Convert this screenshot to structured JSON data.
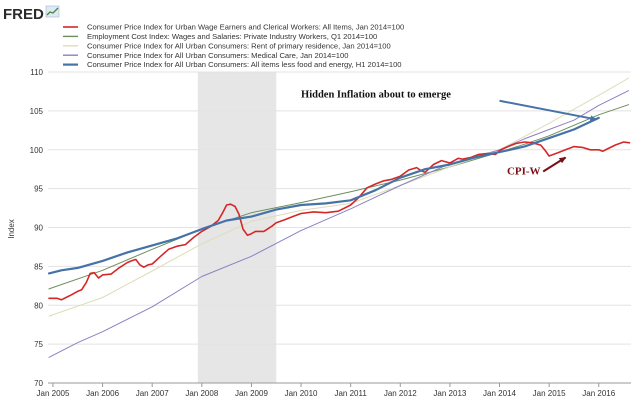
{
  "header": {
    "logo_text": "FRED",
    "logo_icon": "chart-line-icon"
  },
  "chart_data": {
    "type": "line",
    "title": "",
    "xlabel": "",
    "ylabel": "Index",
    "ylim": [
      70,
      110
    ],
    "xlim": [
      2004.9,
      2016.65
    ],
    "grid": true,
    "y_ticks": [
      70,
      75,
      80,
      85,
      90,
      95,
      100,
      105,
      110
    ],
    "x_ticks": [
      {
        "label": "Jan 2005",
        "x": 2005.0
      },
      {
        "label": "Jan 2006",
        "x": 2006.0
      },
      {
        "label": "Jan 2007",
        "x": 2007.0
      },
      {
        "label": "Jan 2008",
        "x": 2008.0
      },
      {
        "label": "Jan 2009",
        "x": 2009.0
      },
      {
        "label": "Jan 2010",
        "x": 2010.0
      },
      {
        "label": "Jan 2011",
        "x": 2011.0
      },
      {
        "label": "Jan 2012",
        "x": 2012.0
      },
      {
        "label": "Jan 2013",
        "x": 2013.0
      },
      {
        "label": "Jan 2014",
        "x": 2014.0
      },
      {
        "label": "Jan 2015",
        "x": 2015.0
      },
      {
        "label": "Jan 2016",
        "x": 2016.0
      }
    ],
    "recession_shading": {
      "start": 2007.92,
      "end": 2009.5,
      "color": "#e6e6e6"
    },
    "series": [
      {
        "name": "Consumer Price Index for Urban Wage Earners and Clerical Workers: All Items, Jan 2014=100",
        "color": "#d62728",
        "width": 1.6,
        "points": [
          [
            2004.92,
            80.9
          ],
          [
            2005.08,
            80.9
          ],
          [
            2005.17,
            80.7
          ],
          [
            2005.33,
            81.2
          ],
          [
            2005.5,
            81.8
          ],
          [
            2005.58,
            82.0
          ],
          [
            2005.67,
            82.9
          ],
          [
            2005.75,
            84.1
          ],
          [
            2005.83,
            84.2
          ],
          [
            2005.92,
            83.5
          ],
          [
            2006.0,
            83.9
          ],
          [
            2006.17,
            84.0
          ],
          [
            2006.33,
            84.8
          ],
          [
            2006.5,
            85.5
          ],
          [
            2006.58,
            85.7
          ],
          [
            2006.67,
            85.9
          ],
          [
            2006.75,
            85.2
          ],
          [
            2006.83,
            84.9
          ],
          [
            2006.92,
            85.2
          ],
          [
            2007.0,
            85.3
          ],
          [
            2007.17,
            86.3
          ],
          [
            2007.33,
            87.2
          ],
          [
            2007.5,
            87.6
          ],
          [
            2007.67,
            87.8
          ],
          [
            2007.83,
            88.7
          ],
          [
            2008.0,
            89.5
          ],
          [
            2008.17,
            90.1
          ],
          [
            2008.33,
            90.9
          ],
          [
            2008.42,
            91.9
          ],
          [
            2008.5,
            92.9
          ],
          [
            2008.58,
            93.0
          ],
          [
            2008.67,
            92.7
          ],
          [
            2008.75,
            91.7
          ],
          [
            2008.83,
            89.8
          ],
          [
            2008.92,
            89.0
          ],
          [
            2009.0,
            89.2
          ],
          [
            2009.08,
            89.5
          ],
          [
            2009.25,
            89.5
          ],
          [
            2009.42,
            90.2
          ],
          [
            2009.5,
            90.6
          ],
          [
            2009.67,
            91.0
          ],
          [
            2009.83,
            91.4
          ],
          [
            2010.0,
            91.8
          ],
          [
            2010.25,
            92.0
          ],
          [
            2010.5,
            91.9
          ],
          [
            2010.75,
            92.1
          ],
          [
            2011.0,
            92.9
          ],
          [
            2011.17,
            93.9
          ],
          [
            2011.33,
            95.1
          ],
          [
            2011.5,
            95.6
          ],
          [
            2011.67,
            96.0
          ],
          [
            2011.83,
            96.2
          ],
          [
            2012.0,
            96.6
          ],
          [
            2012.17,
            97.4
          ],
          [
            2012.33,
            97.7
          ],
          [
            2012.42,
            97.3
          ],
          [
            2012.5,
            97.1
          ],
          [
            2012.67,
            98.1
          ],
          [
            2012.83,
            98.6
          ],
          [
            2013.0,
            98.3
          ],
          [
            2013.17,
            98.9
          ],
          [
            2013.25,
            98.8
          ],
          [
            2013.42,
            99.0
          ],
          [
            2013.58,
            99.4
          ],
          [
            2013.75,
            99.5
          ],
          [
            2013.92,
            99.4
          ],
          [
            2014.0,
            99.9
          ],
          [
            2014.17,
            100.4
          ],
          [
            2014.33,
            100.8
          ],
          [
            2014.5,
            101.0
          ],
          [
            2014.67,
            100.9
          ],
          [
            2014.83,
            100.6
          ],
          [
            2014.92,
            99.9
          ],
          [
            2015.0,
            99.2
          ],
          [
            2015.17,
            99.6
          ],
          [
            2015.33,
            100.0
          ],
          [
            2015.5,
            100.4
          ],
          [
            2015.67,
            100.3
          ],
          [
            2015.83,
            100.0
          ],
          [
            2016.0,
            100.0
          ],
          [
            2016.08,
            99.8
          ],
          [
            2016.17,
            100.1
          ],
          [
            2016.33,
            100.6
          ],
          [
            2016.5,
            101.0
          ],
          [
            2016.62,
            100.9
          ]
        ]
      },
      {
        "name": "Employment Cost Index: Wages and Salaries: Private Industry Workers, Q1 2014=100",
        "color": "#6b8f5e",
        "width": 1,
        "points": [
          [
            2004.92,
            82.1
          ],
          [
            2006.0,
            84.5
          ],
          [
            2007.0,
            87.2
          ],
          [
            2008.0,
            89.8
          ],
          [
            2009.0,
            91.9
          ],
          [
            2010.0,
            93.2
          ],
          [
            2011.0,
            94.6
          ],
          [
            2012.0,
            96.1
          ],
          [
            2013.0,
            97.8
          ],
          [
            2014.0,
            99.7
          ],
          [
            2014.5,
            100.7
          ],
          [
            2015.0,
            101.8
          ],
          [
            2016.0,
            104.5
          ],
          [
            2016.6,
            105.8
          ]
        ]
      },
      {
        "name": "Consumer Price Index for All Urban Consumers: Rent of primary residence, Jan 2014=100",
        "color": "#dedcb8",
        "width": 1,
        "points": [
          [
            2004.92,
            78.6
          ],
          [
            2006.0,
            81.0
          ],
          [
            2007.0,
            84.4
          ],
          [
            2008.0,
            87.9
          ],
          [
            2009.0,
            90.8
          ],
          [
            2010.0,
            92.2
          ],
          [
            2011.0,
            93.1
          ],
          [
            2012.0,
            95.4
          ],
          [
            2013.0,
            97.8
          ],
          [
            2014.0,
            100.0
          ],
          [
            2015.0,
            103.4
          ],
          [
            2016.0,
            107.0
          ],
          [
            2016.6,
            109.2
          ]
        ]
      },
      {
        "name": "Consumer Price Index for All Urban Consumers: Medical Care, Jan 2014=100",
        "color": "#8b80c4",
        "width": 1,
        "points": [
          [
            2004.92,
            73.3
          ],
          [
            2005.5,
            75.2
          ],
          [
            2006.0,
            76.6
          ],
          [
            2007.0,
            79.8
          ],
          [
            2008.0,
            83.7
          ],
          [
            2009.0,
            86.3
          ],
          [
            2010.0,
            89.6
          ],
          [
            2011.0,
            92.4
          ],
          [
            2012.0,
            95.4
          ],
          [
            2013.0,
            98.2
          ],
          [
            2014.0,
            100.0
          ],
          [
            2014.5,
            101.4
          ],
          [
            2015.0,
            102.6
          ],
          [
            2015.5,
            103.8
          ],
          [
            2016.0,
            105.7
          ],
          [
            2016.6,
            107.6
          ]
        ]
      },
      {
        "name": "Consumer Price Index for All Urban Consumers: All items less food and energy, H1 2014=100",
        "color": "#4572a7",
        "width": 2.2,
        "points": [
          [
            2004.92,
            84.1
          ],
          [
            2005.17,
            84.5
          ],
          [
            2005.5,
            84.8
          ],
          [
            2006.0,
            85.7
          ],
          [
            2006.5,
            86.8
          ],
          [
            2007.0,
            87.7
          ],
          [
            2007.5,
            88.6
          ],
          [
            2008.0,
            89.8
          ],
          [
            2008.5,
            90.9
          ],
          [
            2009.0,
            91.4
          ],
          [
            2009.5,
            92.3
          ],
          [
            2010.0,
            92.9
          ],
          [
            2010.5,
            93.1
          ],
          [
            2011.0,
            93.5
          ],
          [
            2011.5,
            94.8
          ],
          [
            2012.0,
            96.4
          ],
          [
            2012.5,
            97.5
          ],
          [
            2013.0,
            98.1
          ],
          [
            2013.5,
            99.0
          ],
          [
            2014.0,
            99.7
          ],
          [
            2014.5,
            100.4
          ],
          [
            2015.0,
            101.5
          ],
          [
            2015.5,
            102.6
          ],
          [
            2016.0,
            104.1
          ]
        ]
      }
    ],
    "annotations": [
      {
        "text": "Hidden Inflation about to emerge",
        "x": 2010.0,
        "y": 106.7,
        "size": 10.5,
        "style": "black"
      },
      {
        "text": "CPI-W",
        "x": 2014.15,
        "y": 96.8,
        "size": 11,
        "style": "red"
      }
    ],
    "arrows": [
      {
        "x1": 2014.0,
        "y1": 106.3,
        "x2": 2015.95,
        "y2": 103.9,
        "color": "#4572a7"
      },
      {
        "x1": 2014.88,
        "y1": 97.2,
        "x2": 2015.33,
        "y2": 99.0,
        "color": "#7a0f16"
      }
    ]
  }
}
